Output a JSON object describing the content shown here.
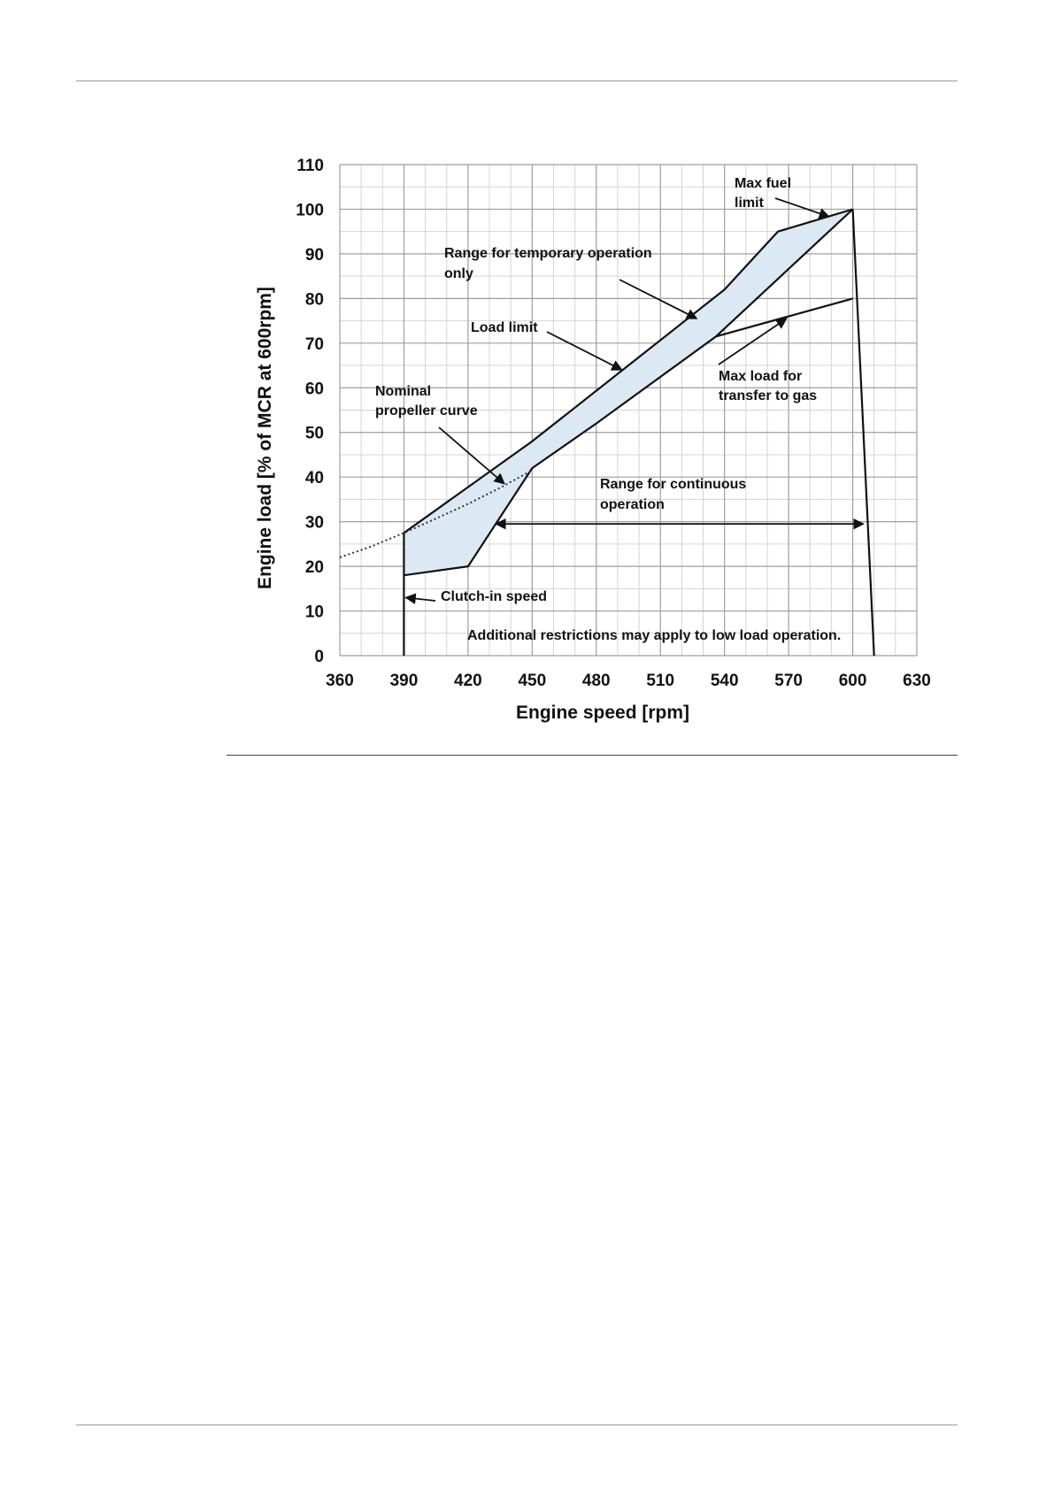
{
  "chart_data": {
    "type": "line",
    "title": "",
    "xlabel": "Engine speed [rpm]",
    "ylabel": "Engine load [% of MCR at 600rpm]",
    "xlim": [
      360,
      630
    ],
    "ylim": [
      0,
      110
    ],
    "x_ticks": [
      "360",
      "390",
      "420",
      "450",
      "480",
      "510",
      "540",
      "570",
      "600",
      "630"
    ],
    "y_ticks": [
      "0",
      "10",
      "20",
      "30",
      "40",
      "50",
      "60",
      "70",
      "80",
      "90",
      "100",
      "110"
    ],
    "grid": true,
    "minor_grid": true,
    "fill_color": "#dce9f5",
    "series": [
      {
        "name": "Load limit",
        "style": "solid",
        "points": [
          [
            390,
            27.5
          ],
          [
            450,
            48
          ],
          [
            540,
            82
          ],
          [
            565,
            95
          ],
          [
            600,
            100
          ]
        ]
      },
      {
        "name": "Max fuel limit",
        "style": "solid",
        "points": [
          [
            600,
            100
          ],
          [
            610,
            0
          ]
        ]
      },
      {
        "name": "",
        "style": "solid",
        "points": [
          [
            390,
            18
          ],
          [
            420,
            20
          ],
          [
            450,
            42
          ],
          [
            480,
            52
          ],
          [
            536,
            71.5
          ],
          [
            600,
            100
          ]
        ]
      },
      {
        "name": "Max load for transfer to gas",
        "style": "solid",
        "points": [
          [
            536,
            71.5
          ],
          [
            600,
            80
          ]
        ]
      },
      {
        "name": "Clutch-in speed",
        "style": "solid",
        "points": [
          [
            390,
            0
          ],
          [
            390,
            27.5
          ]
        ]
      },
      {
        "name": "Nominal propeller curve",
        "style": "dotted",
        "points": [
          [
            360,
            22
          ],
          [
            375,
            24.5
          ],
          [
            390,
            27.5
          ],
          [
            405,
            30.7
          ],
          [
            420,
            34
          ],
          [
            435,
            37.6
          ],
          [
            450,
            41.5
          ]
        ]
      }
    ],
    "annotations": {
      "max_fuel": [
        "Max fuel",
        "limit"
      ],
      "temporary": [
        "Range for temporary operation",
        "only"
      ],
      "load_limit": [
        "Load limit"
      ],
      "transfer": [
        "Max load for",
        "transfer to gas"
      ],
      "nominal": [
        "Nominal",
        "propeller curve"
      ],
      "continuous": [
        "Range for continuous",
        "operation"
      ],
      "clutch": [
        "Clutch-in speed"
      ],
      "restrictions": [
        "Additional restrictions may apply to low load operation."
      ]
    },
    "continuous_range": [
      433,
      605
    ]
  }
}
